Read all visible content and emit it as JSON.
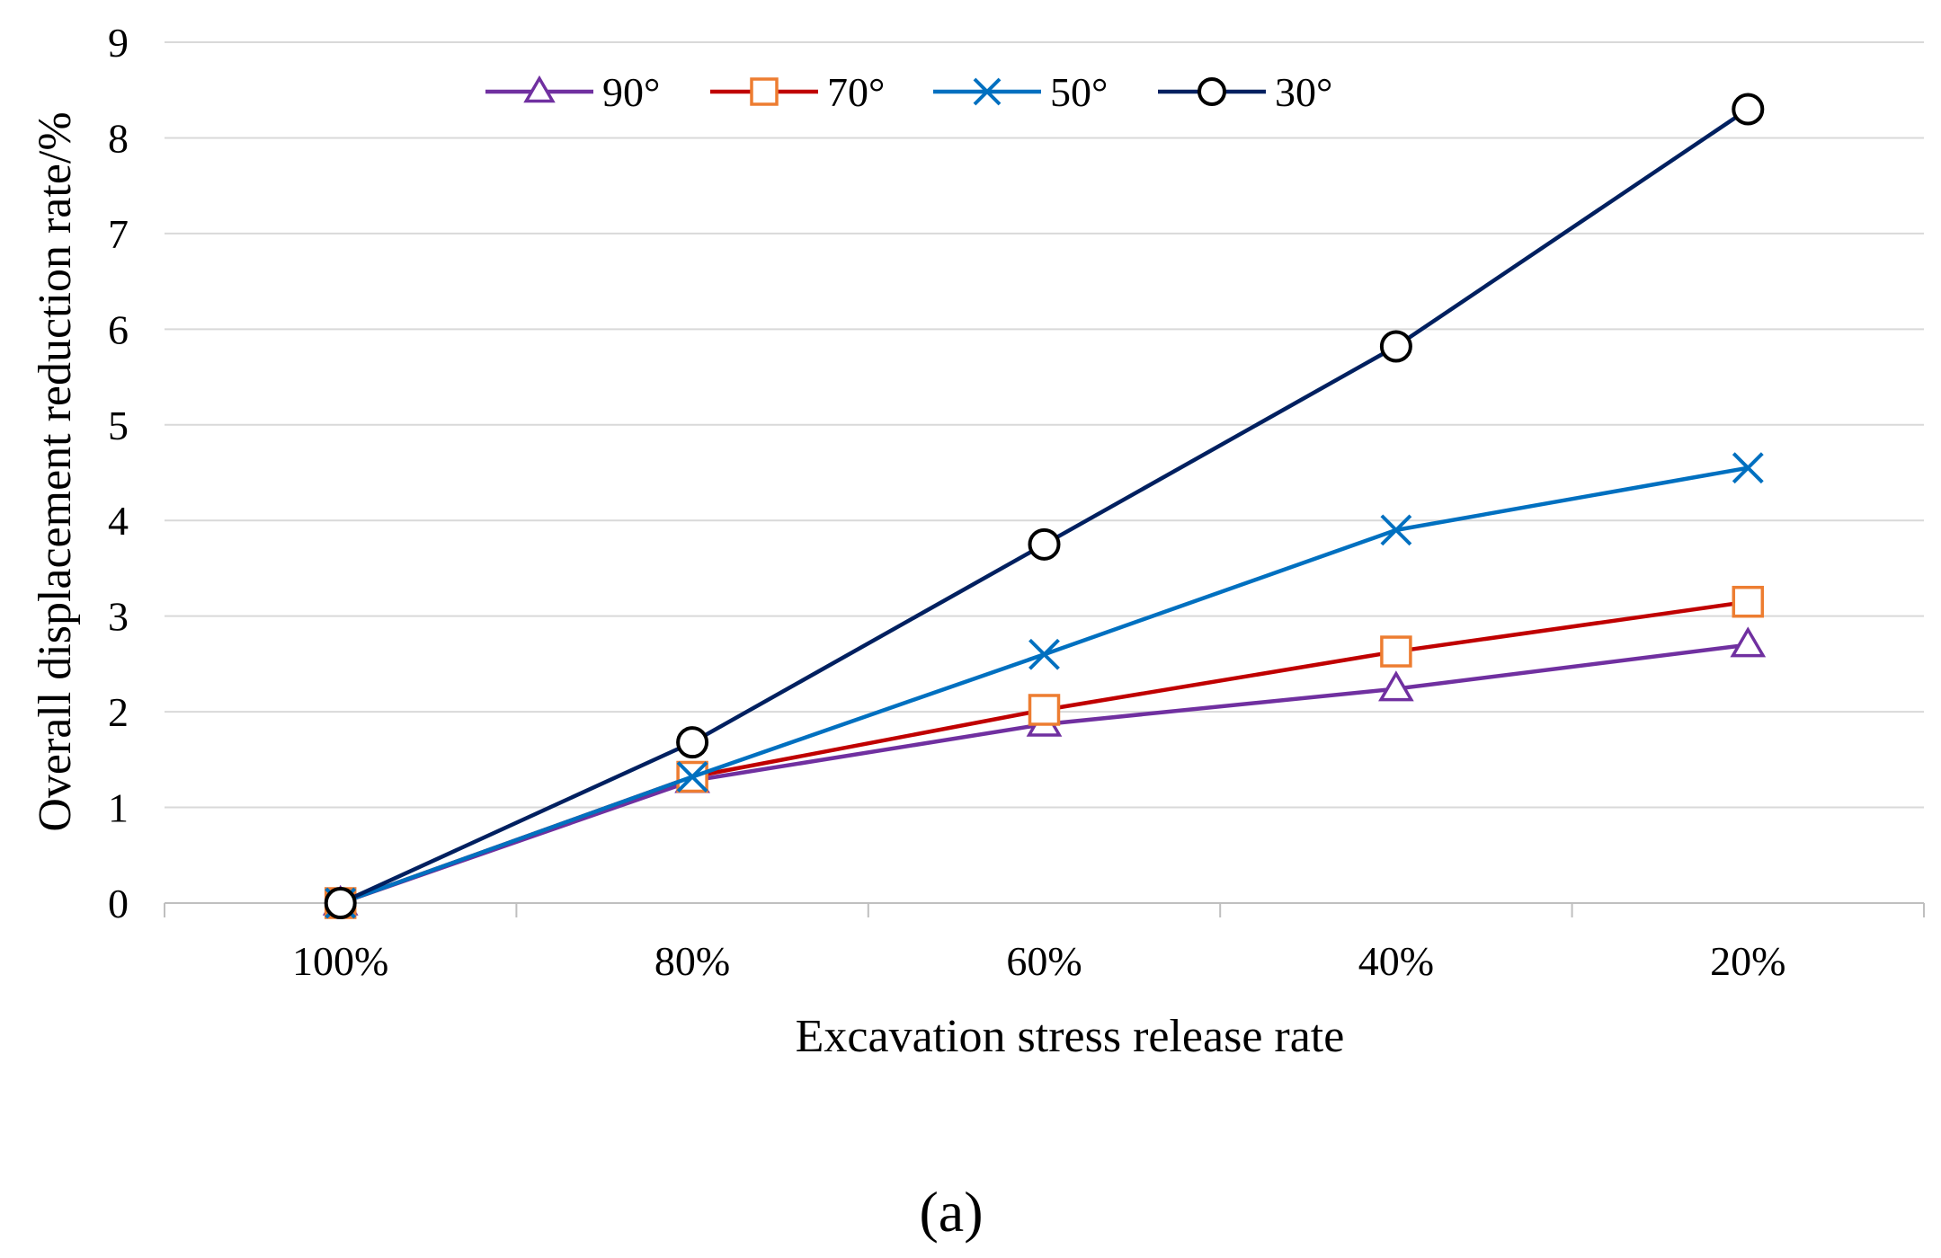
{
  "chart_data": {
    "type": "line",
    "title": "",
    "xlabel": "Excavation stress release rate",
    "ylabel": "Overall displacement  reduction rate/%",
    "categories": [
      "100%",
      "80%",
      "60%",
      "40%",
      "20%"
    ],
    "yticks": [
      "0",
      "1",
      "2",
      "3",
      "4",
      "5",
      "6",
      "7",
      "8",
      "9"
    ],
    "ylim": [
      0,
      9
    ],
    "grid": true,
    "legend_position": "top",
    "series": [
      {
        "name": "90°",
        "color": "#7030A0",
        "marker": "triangle",
        "values": [
          0,
          1.28,
          1.87,
          2.24,
          2.7
        ]
      },
      {
        "name": "70°",
        "color": "#C00000",
        "marker": "square",
        "marker_color": "#ED7D31",
        "values": [
          0,
          1.32,
          2.02,
          2.63,
          3.15
        ]
      },
      {
        "name": "50°",
        "color": "#0070C0",
        "marker": "x",
        "values": [
          0,
          1.32,
          2.6,
          3.9,
          4.55
        ]
      },
      {
        "name": "30°",
        "color": "#002060",
        "marker": "circle",
        "marker_color": "#000000",
        "values": [
          0,
          1.68,
          3.75,
          5.82,
          8.3
        ]
      }
    ]
  },
  "caption": "(a)"
}
